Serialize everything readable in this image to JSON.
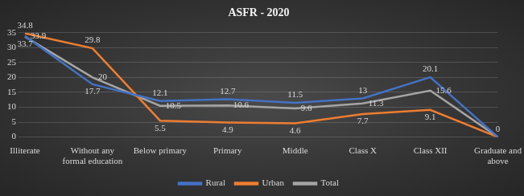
{
  "chart_data": {
    "type": "line",
    "title": "ASFR - 2020",
    "categories": [
      "Illiterate",
      "Without any formal education",
      "Below primary",
      "Primary",
      "Middle",
      "Class X",
      "Class XII",
      "Graduate and above"
    ],
    "series": [
      {
        "name": "Rural",
        "color": "#4472c4",
        "values": [
          33.9,
          17.7,
          12.1,
          12.7,
          11.5,
          13,
          20.1,
          0
        ]
      },
      {
        "name": "Urban",
        "color": "#ed7d31",
        "values": [
          34.8,
          29.8,
          5.5,
          4.9,
          4.6,
          7.7,
          9.1,
          0
        ]
      },
      {
        "name": "Total",
        "color": "#a5a5a5",
        "values": [
          33.7,
          20,
          10.5,
          10.6,
          9.6,
          11.3,
          15.6,
          0
        ]
      }
    ],
    "ylim": [
      0,
      35
    ],
    "yticks": [
      0,
      5,
      10,
      15,
      20,
      25,
      30,
      35
    ],
    "grid": true,
    "legend": "bottom",
    "data_labels": true
  }
}
